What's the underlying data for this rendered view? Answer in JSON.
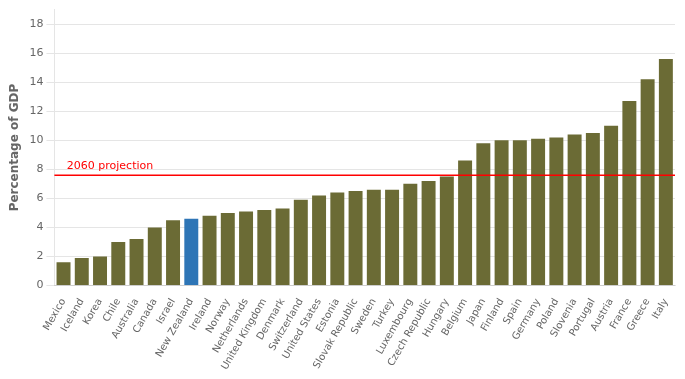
{
  "chart_data": {
    "type": "bar",
    "categories": [
      "Mexico",
      "Iceland",
      "Korea",
      "Chile",
      "Australia",
      "Canada",
      "Israel",
      "New Zealand",
      "Ireland",
      "Norway",
      "Netherlands",
      "United Kingdom",
      "Denmark",
      "Switzerland",
      "United States",
      "Estonia",
      "Slovak Republic",
      "Sweden",
      "Turkey",
      "Luxembourg",
      "Czech Republic",
      "Hungary",
      "Belgium",
      "Japan",
      "Finland",
      "Spain",
      "Germany",
      "Poland",
      "Slovenia",
      "Portugal",
      "Austria",
      "France",
      "Greece",
      "Italy"
    ],
    "values": [
      1.6,
      1.9,
      2.0,
      3.0,
      3.2,
      4.0,
      4.5,
      4.6,
      4.8,
      5.0,
      5.1,
      5.2,
      5.3,
      5.9,
      6.2,
      6.4,
      6.5,
      6.6,
      6.6,
      7.0,
      7.2,
      7.5,
      8.6,
      9.8,
      10.0,
      10.0,
      10.1,
      10.2,
      10.4,
      10.5,
      11.0,
      12.7,
      14.2,
      15.6
    ],
    "colors": [
      "#6B6B35",
      "#6B6B35",
      "#6B6B35",
      "#6B6B35",
      "#6B6B35",
      "#6B6B35",
      "#6B6B35",
      "#2E75B6",
      "#6B6B35",
      "#6B6B35",
      "#6B6B35",
      "#6B6B35",
      "#6B6B35",
      "#6B6B35",
      "#6B6B35",
      "#6B6B35",
      "#6B6B35",
      "#6B6B35",
      "#6B6B35",
      "#6B6B35",
      "#6B6B35",
      "#6B6B35",
      "#6B6B35",
      "#6B6B35",
      "#6B6B35",
      "#6B6B35",
      "#6B6B35",
      "#6B6B35",
      "#6B6B35",
      "#6B6B35",
      "#6B6B35",
      "#6B6B35",
      "#6B6B35",
      "#6B6B35"
    ],
    "ylabel": "Percentage of GDP",
    "ylim": [
      0,
      19
    ],
    "yticks": [
      0,
      2,
      4,
      6,
      8,
      10,
      12,
      14,
      16,
      18
    ],
    "grid": true,
    "annotations": [
      {
        "type": "hline",
        "y": 7.6,
        "label": "2060 projection",
        "color": "#FF0000"
      }
    ]
  }
}
